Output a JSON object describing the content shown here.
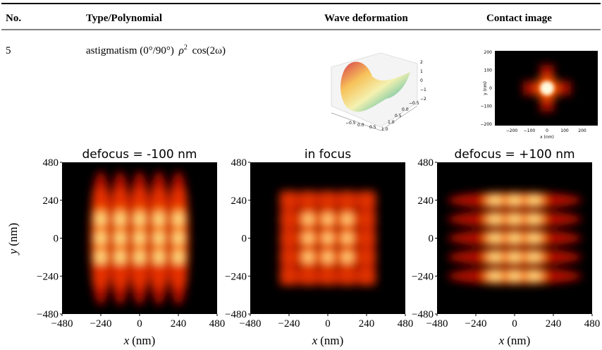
{
  "table": {
    "headers": [
      "No.",
      "Type/Polynomial",
      "Wave deformation",
      "Contact image"
    ],
    "rows": [
      {
        "no": "5",
        "type": "astigmatism (0°/90°)",
        "polynomial_base": "ρ",
        "polynomial_exponent": "2",
        "polynomial_rest": "cos(2ω)"
      }
    ]
  },
  "wave_deformation": {
    "z_ticks": [
      "2",
      "1",
      "0",
      "−1",
      "−2"
    ],
    "x_ticks": [
      "−0.5",
      "0.0",
      "0.5",
      "1.0"
    ],
    "y_ticks": [
      "1.0",
      "0.5",
      "0.0",
      "−0.5"
    ]
  },
  "contact_image": {
    "y_ticks": [
      "200",
      "100",
      "0",
      "−100",
      "−200"
    ],
    "x_ticks": [
      "−200",
      "−100",
      "0",
      "100",
      "200"
    ],
    "x_label": "x (nm)",
    "y_label": "y (nm)"
  },
  "panels": [
    {
      "title": "defocus = -100 nm"
    },
    {
      "title": "in focus"
    },
    {
      "title": "defocus = +100 nm"
    }
  ],
  "panel_axes": {
    "xlim": [
      -480,
      480
    ],
    "ylim": [
      -480,
      480
    ],
    "xticks": [
      {
        "value": -480,
        "label": "−480"
      },
      {
        "value": -240,
        "label": "−240"
      },
      0,
      240,
      480
    ],
    "yticks": [
      {
        "value": -480,
        "label": "−480"
      },
      {
        "value": -240,
        "label": "−240"
      },
      0,
      240,
      480
    ],
    "x_label_var": "x",
    "x_label_unit": "(nm)",
    "y_label_var": "y",
    "y_label_unit": "(nm)"
  }
}
